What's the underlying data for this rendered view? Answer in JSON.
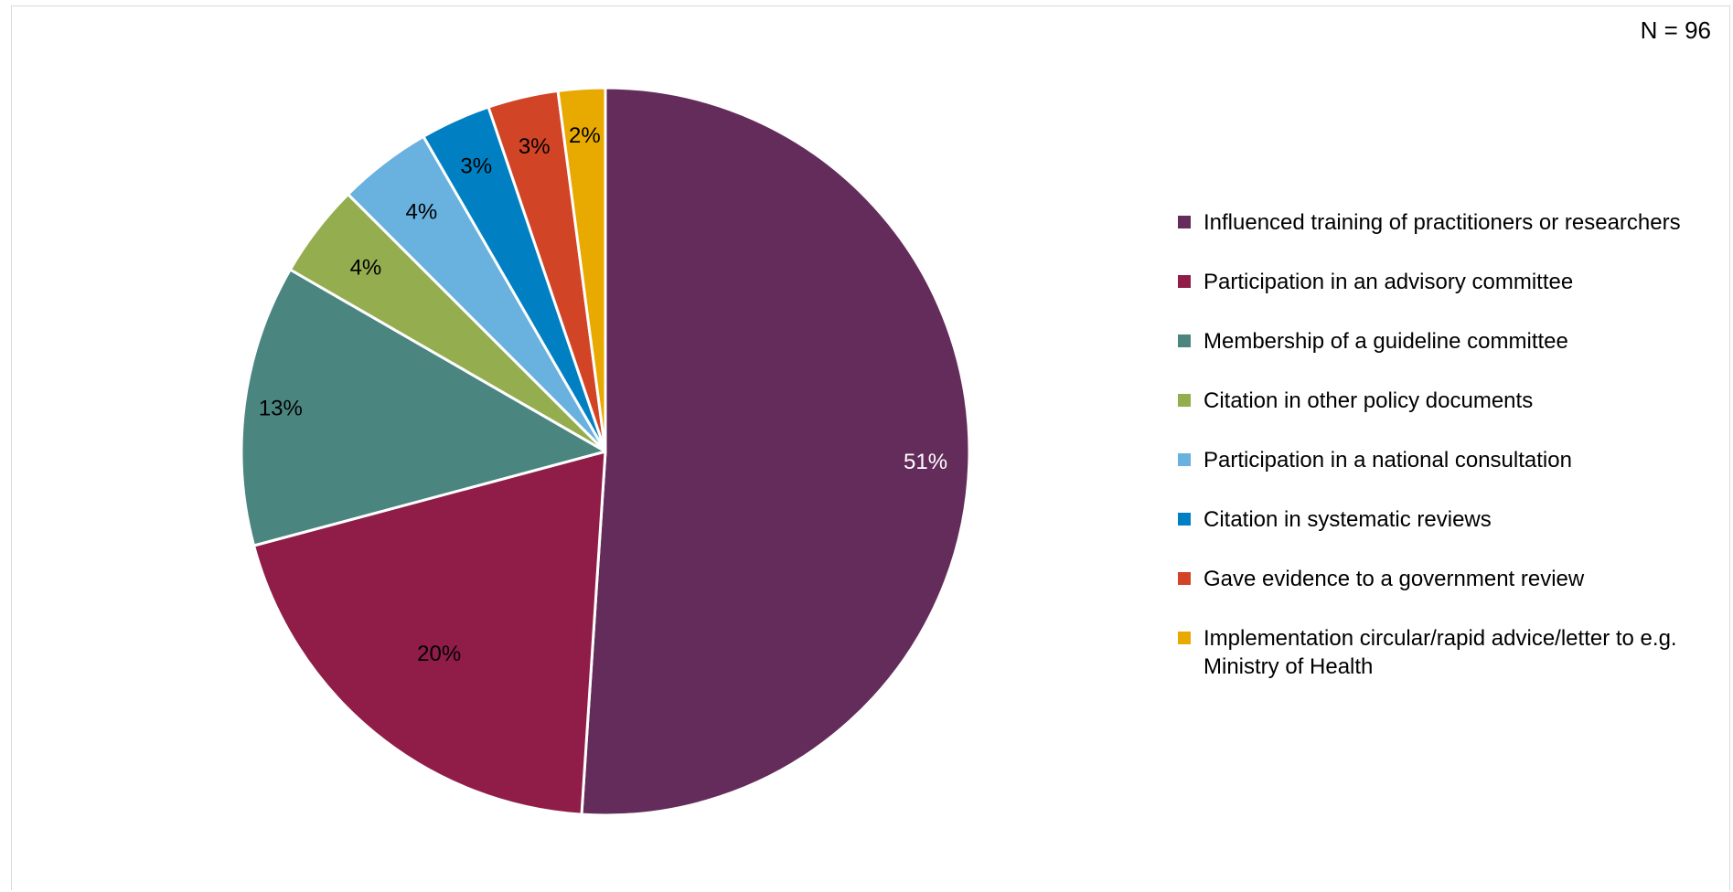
{
  "sample_note": "N = 96",
  "chart_data": {
    "type": "pie",
    "title": "",
    "categories": [
      "Influenced training of practitioners or researchers",
      "Participation in an advisory committee",
      "Membership of a guideline committee",
      "Citation in other policy documents",
      "Participation in a national consultation",
      "Citation in systematic reviews",
      "Gave evidence to a government review",
      "Implementation circular/rapid advice/letter to e.g. Ministry of Health"
    ],
    "values": [
      49,
      19,
      12,
      4,
      4,
      3,
      3,
      2
    ],
    "data_labels": [
      "51%",
      "20%",
      "13%",
      "4%",
      "4%",
      "3%",
      "3%",
      "2%"
    ],
    "colors": [
      "#632c5b",
      "#8f1d48",
      "#4a8580",
      "#94ad4f",
      "#69b1de",
      "#0080c2",
      "#d14426",
      "#e8aa00"
    ],
    "label_colors": [
      "#ffffff",
      "#000000",
      "#000000",
      "#000000",
      "#000000",
      "#000000",
      "#000000",
      "#000000"
    ],
    "legend_position": "right"
  }
}
